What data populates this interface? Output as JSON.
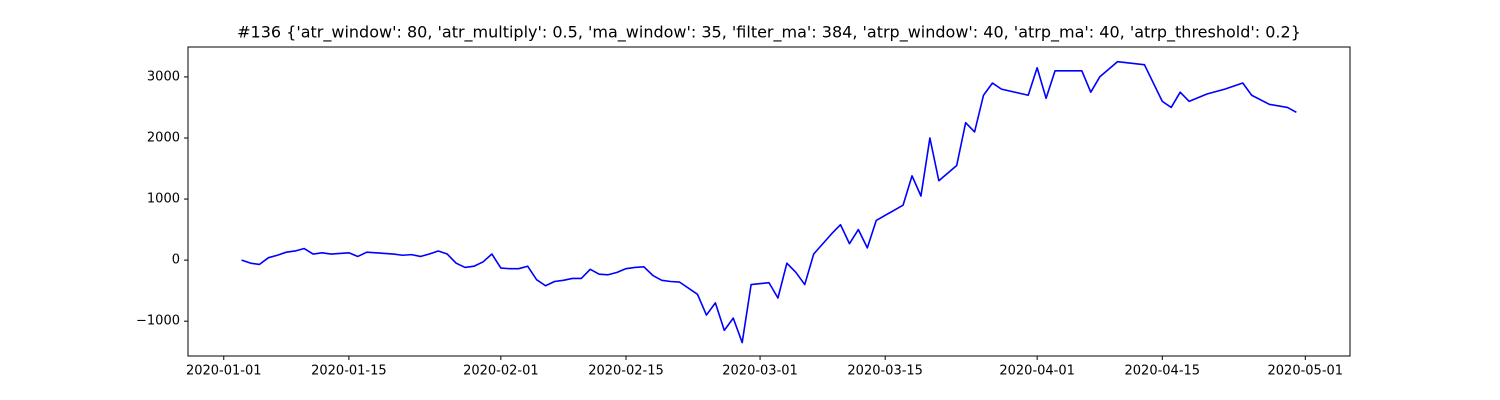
{
  "chart_data": {
    "type": "line",
    "title": "#136 {'atr_window': 80, 'atr_multiply': 0.5, 'ma_window': 35, 'filter_ma': 384, 'atrp_window': 40, 'atrp_ma': 40, 'atrp_threshold': 0.2}",
    "x": [
      "2020-01-03",
      "2020-01-04",
      "2020-01-05",
      "2020-01-06",
      "2020-01-07",
      "2020-01-08",
      "2020-01-09",
      "2020-01-10",
      "2020-01-11",
      "2020-01-12",
      "2020-01-13",
      "2020-01-14",
      "2020-01-15",
      "2020-01-16",
      "2020-01-17",
      "2020-01-18",
      "2020-01-19",
      "2020-01-20",
      "2020-01-21",
      "2020-01-22",
      "2020-01-23",
      "2020-01-24",
      "2020-01-25",
      "2020-01-26",
      "2020-01-27",
      "2020-01-28",
      "2020-01-29",
      "2020-01-30",
      "2020-01-31",
      "2020-02-01",
      "2020-02-02",
      "2020-02-03",
      "2020-02-04",
      "2020-02-05",
      "2020-02-06",
      "2020-02-07",
      "2020-02-08",
      "2020-02-09",
      "2020-02-10",
      "2020-02-11",
      "2020-02-12",
      "2020-02-13",
      "2020-02-14",
      "2020-02-15",
      "2020-02-16",
      "2020-02-17",
      "2020-02-18",
      "2020-02-19",
      "2020-02-20",
      "2020-02-21",
      "2020-02-23",
      "2020-02-24",
      "2020-02-25",
      "2020-02-26",
      "2020-02-27",
      "2020-02-28",
      "2020-02-29",
      "2020-03-02",
      "2020-03-03",
      "2020-03-04",
      "2020-03-05",
      "2020-03-06",
      "2020-03-07",
      "2020-03-09",
      "2020-03-10",
      "2020-03-11",
      "2020-03-12",
      "2020-03-13",
      "2020-03-14",
      "2020-03-17",
      "2020-03-18",
      "2020-03-19",
      "2020-03-20",
      "2020-03-21",
      "2020-03-23",
      "2020-03-24",
      "2020-03-25",
      "2020-03-26",
      "2020-03-27",
      "2020-03-28",
      "2020-03-31",
      "2020-04-01",
      "2020-04-02",
      "2020-04-03",
      "2020-04-06",
      "2020-04-07",
      "2020-04-08",
      "2020-04-10",
      "2020-04-13",
      "2020-04-15",
      "2020-04-16",
      "2020-04-17",
      "2020-04-18",
      "2020-04-20",
      "2020-04-22",
      "2020-04-24",
      "2020-04-25",
      "2020-04-27",
      "2020-04-29",
      "2020-04-30"
    ],
    "series": [
      {
        "color": "#0000ff",
        "values": [
          0,
          -50,
          -70,
          40,
          80,
          130,
          150,
          190,
          100,
          120,
          100,
          110,
          120,
          60,
          130,
          120,
          110,
          100,
          80,
          90,
          60,
          100,
          150,
          100,
          -50,
          -120,
          -100,
          -30,
          100,
          -130,
          -140,
          -140,
          -100,
          -320,
          -420,
          -350,
          -330,
          -300,
          -300,
          -150,
          -230,
          -240,
          -200,
          -140,
          -120,
          -110,
          -250,
          -330,
          -350,
          -360,
          -560,
          -900,
          -700,
          -1150,
          -950,
          -1350,
          -400,
          -370,
          -620,
          -50,
          -200,
          -400,
          100,
          430,
          580,
          270,
          500,
          200,
          650,
          900,
          1380,
          1050,
          2000,
          1300,
          1550,
          2250,
          2100,
          2700,
          2900,
          2800,
          2700,
          3150,
          2650,
          3100,
          3100,
          2750,
          3000,
          3250,
          3200,
          2600,
          2500,
          2750,
          2600,
          2720,
          2800,
          2900,
          2700,
          2550,
          2500,
          2420
        ]
      }
    ],
    "xlim": [
      "2019-12-28",
      "2020-05-06"
    ],
    "xticks": [
      "2020-01-01",
      "2020-01-15",
      "2020-02-01",
      "2020-02-15",
      "2020-03-01",
      "2020-03-15",
      "2020-04-01",
      "2020-04-15",
      "2020-05-01"
    ],
    "ylim": [
      -1570,
      3490
    ],
    "yticks": [
      {
        "value": -1000,
        "label": "−1000"
      },
      0,
      1000,
      2000,
      3000
    ]
  }
}
